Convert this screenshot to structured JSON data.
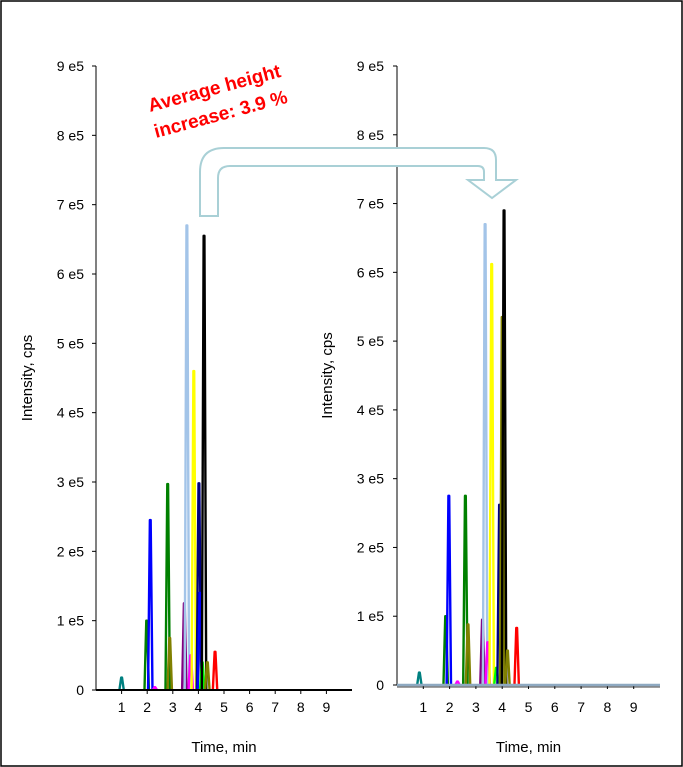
{
  "annotation": {
    "line1": "Average height",
    "line2": "increase: 3.9 %"
  },
  "colors": {
    "annotation": "#ff0000",
    "arrow_fill": "#ffffff",
    "arrow_stroke": "#a9d0d6",
    "axis": "#000000",
    "baseline_right": "#8ea9c1"
  },
  "chart_data": [
    {
      "type": "line",
      "title": "",
      "xlabel": "Time, min",
      "ylabel": "Intensity, cps",
      "xlim": [
        0,
        10
      ],
      "ylim": [
        0,
        900000
      ],
      "x_ticks": [
        "1",
        "2",
        "3",
        "4",
        "5",
        "6",
        "7",
        "8",
        "9"
      ],
      "y_ticks": [
        "0",
        "1 e5",
        "2 e5",
        "3 e5",
        "4 e5",
        "5 e5",
        "6 e5",
        "7 e5",
        "8 e5",
        "9 e5"
      ],
      "grid": false,
      "legend": "none",
      "series": [
        {
          "color": "#008080",
          "peak_x": 1.0,
          "peak_y": 18000
        },
        {
          "color": "#008000",
          "peak_x": 1.98,
          "peak_y": 100000
        },
        {
          "color": "#0000ff",
          "peak_x": 2.12,
          "peak_y": 245000
        },
        {
          "color": "#ff00ff",
          "peak_x": 2.3,
          "peak_y": 4000
        },
        {
          "color": "#008000",
          "peak_x": 2.8,
          "peak_y": 297000
        },
        {
          "color": "#808000",
          "peak_x": 2.88,
          "peak_y": 75000
        },
        {
          "color": "#800080",
          "peak_x": 3.45,
          "peak_y": 125000
        },
        {
          "color": "#a3c4e8",
          "peak_x": 3.55,
          "peak_y": 670000
        },
        {
          "color": "#ff00ff",
          "peak_x": 3.7,
          "peak_y": 50000
        },
        {
          "color": "#ffff00",
          "peak_x": 3.82,
          "peak_y": 460000
        },
        {
          "color": "#000080",
          "peak_x": 4.02,
          "peak_y": 298000
        },
        {
          "color": "#0000ff",
          "peak_x": 4.06,
          "peak_y": 140000
        },
        {
          "color": "#00ff00",
          "peak_x": 4.15,
          "peak_y": 40000
        },
        {
          "color": "#000000",
          "peak_x": 4.22,
          "peak_y": 655000
        },
        {
          "color": "#808000",
          "peak_x": 4.35,
          "peak_y": 40000
        },
        {
          "color": "#ff0000",
          "peak_x": 4.65,
          "peak_y": 55000
        }
      ]
    },
    {
      "type": "line",
      "title": "",
      "xlabel": "Time, min",
      "ylabel": "Intensity, cps",
      "xlim": [
        0,
        10
      ],
      "ylim": [
        0,
        900000
      ],
      "x_ticks": [
        "1",
        "2",
        "3",
        "4",
        "5",
        "6",
        "7",
        "8",
        "9"
      ],
      "y_ticks": [
        "0",
        "1 e5",
        "2 e5",
        "3 e5",
        "4 e5",
        "5 e5",
        "6 e5",
        "7 e5",
        "8 e5",
        "9 e5"
      ],
      "grid": false,
      "legend": "none",
      "series": [
        {
          "color": "#008080",
          "peak_x": 0.85,
          "peak_y": 18000
        },
        {
          "color": "#008000",
          "peak_x": 1.85,
          "peak_y": 100000
        },
        {
          "color": "#0000ff",
          "peak_x": 1.97,
          "peak_y": 275000
        },
        {
          "color": "#ff00ff",
          "peak_x": 2.3,
          "peak_y": 5000
        },
        {
          "color": "#008000",
          "peak_x": 2.6,
          "peak_y": 275000
        },
        {
          "color": "#808000",
          "peak_x": 2.7,
          "peak_y": 88000
        },
        {
          "color": "#800080",
          "peak_x": 3.25,
          "peak_y": 95000
        },
        {
          "color": "#a3c4e8",
          "peak_x": 3.35,
          "peak_y": 670000
        },
        {
          "color": "#ff00ff",
          "peak_x": 3.45,
          "peak_y": 62000
        },
        {
          "color": "#ffff00",
          "peak_x": 3.6,
          "peak_y": 612000
        },
        {
          "color": "#00ff00",
          "peak_x": 3.78,
          "peak_y": 25000
        },
        {
          "color": "#000080",
          "peak_x": 3.9,
          "peak_y": 262000
        },
        {
          "color": "#808000",
          "peak_x": 4.0,
          "peak_y": 535000
        },
        {
          "color": "#000000",
          "peak_x": 4.07,
          "peak_y": 690000
        },
        {
          "color": "#808000",
          "peak_x": 4.2,
          "peak_y": 50000
        },
        {
          "color": "#ff0000",
          "peak_x": 4.55,
          "peak_y": 83000
        }
      ]
    }
  ]
}
